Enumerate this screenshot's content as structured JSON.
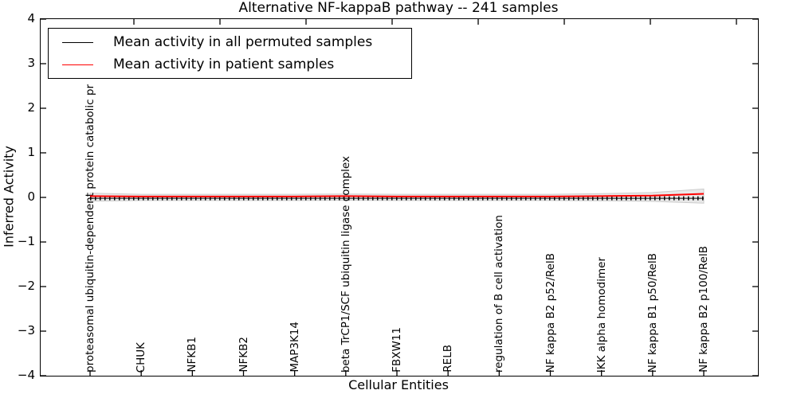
{
  "title": "Alternative NF-kappaB pathway -- 241 samples",
  "axes": {
    "ylabel": "Inferred Activity",
    "xlabel": "Cellular Entities",
    "ytick_labels": [
      "4",
      "3",
      "2",
      "1",
      "0",
      "−1",
      "−2",
      "−3",
      "−4"
    ]
  },
  "legend": {
    "entries": [
      {
        "label": "Mean activity in all permuted samples",
        "color": "#000000"
      },
      {
        "label": "Mean activity in patient samples",
        "color": "#ff0000"
      }
    ]
  },
  "colors": {
    "patient_line": "#ff0000",
    "permuted_line": "#000000",
    "band_fill": "#e8e8e8",
    "band_edge": "#cccccc",
    "axis": "#000000"
  },
  "chart_data": {
    "type": "line",
    "title": "Alternative NF-kappaB pathway -- 241 samples",
    "xlabel": "Cellular Entities",
    "ylabel": "Inferred Activity",
    "ylim": [
      -4,
      4
    ],
    "yticks": [
      4,
      3,
      2,
      1,
      0,
      -1,
      -2,
      -3,
      -4
    ],
    "grid": false,
    "legend_position": "upper left",
    "categories": [
      "proteasomal ubiquitin-dependent protein catabolic pr",
      "CHUK",
      "NFKB1",
      "NFKB2",
      "MAP3K14",
      "beta TrCP1/SCF ubiquitin ligase complex",
      "FBXW11",
      "RELB",
      "regulation of B cell activation",
      "NF kappa B2 p52/RelB",
      "IKK alpha homodimer",
      "NF kappa B1 p50/RelB",
      "NF kappa B2 p100/RelB"
    ],
    "series": [
      {
        "name": "Mean activity in all permuted samples",
        "color": "#000000",
        "style": "dotted",
        "values": [
          -0.02,
          -0.02,
          -0.02,
          -0.02,
          -0.02,
          -0.02,
          -0.02,
          -0.02,
          -0.02,
          -0.02,
          -0.02,
          -0.02,
          -0.02
        ]
      },
      {
        "name": "Mean activity in patient samples",
        "color": "#ff0000",
        "style": "solid",
        "values": [
          0.03,
          0.02,
          0.02,
          0.02,
          0.02,
          0.03,
          0.02,
          0.02,
          0.02,
          0.02,
          0.03,
          0.04,
          0.08
        ]
      }
    ],
    "band": {
      "description": "light grey envelope around permuted mean",
      "halfwidths": [
        0.09,
        0.07,
        0.07,
        0.07,
        0.07,
        0.07,
        0.07,
        0.07,
        0.07,
        0.07,
        0.08,
        0.1,
        0.16
      ]
    }
  }
}
